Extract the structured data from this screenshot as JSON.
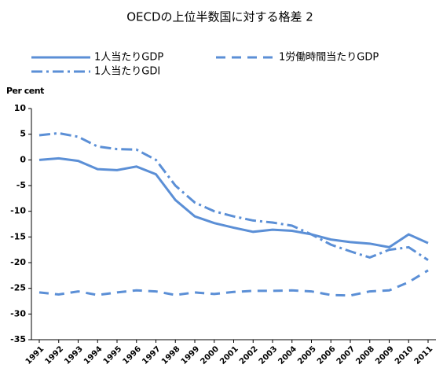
{
  "chart_data": {
    "type": "line",
    "title": "OECDの上位半数国に対する格差 2",
    "y_label": "Per cent",
    "categories": [
      "1991",
      "1992",
      "1993",
      "1994",
      "1995",
      "1996",
      "1997",
      "1998",
      "1999",
      "2000",
      "2001",
      "2002",
      "2003",
      "2004",
      "2005",
      "2006",
      "2007",
      "2008",
      "2009",
      "2010",
      "2011"
    ],
    "series": [
      {
        "name": "1人当たりGDP",
        "color": "#5b8fd6",
        "style": "solid",
        "values": [
          0,
          0.3,
          -0.2,
          -1.8,
          -2,
          -1.3,
          -2.8,
          -7.8,
          -11,
          -12.3,
          -13.2,
          -14,
          -13.6,
          -13.8,
          -14.5,
          -15.5,
          -16,
          -16.3,
          -17,
          -14.5,
          -16.2
        ]
      },
      {
        "name": "1人当たりGDI",
        "color": "#5b8fd6",
        "style": "dashdot",
        "values": [
          4.8,
          5.2,
          4.5,
          2.6,
          2.1,
          2,
          0,
          -5,
          -8.3,
          -10,
          -11,
          -11.8,
          -12.2,
          -12.8,
          -14.5,
          -16.5,
          -17.8,
          -19,
          -17.5,
          -17,
          -19.5
        ]
      },
      {
        "name": "1労働時間当たりGDP",
        "color": "#5b8fd6",
        "style": "dashed",
        "values": [
          -25.8,
          -26.2,
          -25.6,
          -26.3,
          -25.8,
          -25.4,
          -25.6,
          -26.3,
          -25.8,
          -26.1,
          -25.7,
          -25.5,
          -25.5,
          -25.4,
          -25.6,
          -26.3,
          -26.4,
          -25.6,
          -25.4,
          -23.8,
          -21.5
        ]
      }
    ],
    "ylim": [
      -35,
      10
    ],
    "yticks": [
      -35,
      -30,
      -25,
      -20,
      -15,
      -10,
      -5,
      0,
      5,
      10
    ],
    "grid": false
  }
}
